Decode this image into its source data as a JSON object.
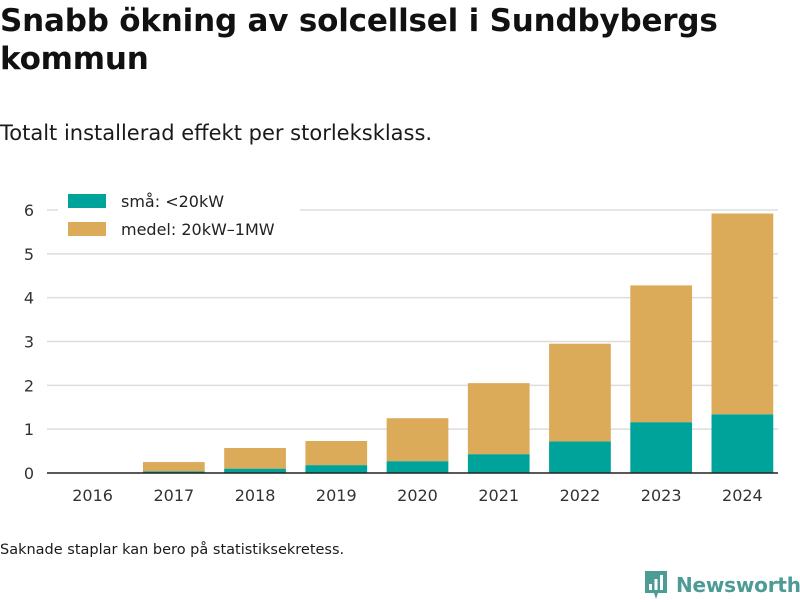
{
  "title": "Snabb ökning av solcellsel i Sundbybergs kommun",
  "subtitle": "Totalt installerad effekt per storleksklass.",
  "footnote": "Saknade staplar kan bero på statistiksekretess.",
  "brand": {
    "name": "Newsworthy",
    "icon": "newsworthy-logo-icon",
    "color": "#4d9b95"
  },
  "chart_data": {
    "type": "bar",
    "stacked": true,
    "categories": [
      "2016",
      "2017",
      "2018",
      "2019",
      "2020",
      "2021",
      "2022",
      "2023",
      "2024"
    ],
    "series": [
      {
        "name": "små: <20kW",
        "color": "#00a39a",
        "values": [
          0,
          0.04,
          0.1,
          0.18,
          0.27,
          0.43,
          0.72,
          1.16,
          1.34
        ]
      },
      {
        "name": "medel: 20kW–1MW",
        "color": "#dbab5a",
        "values": [
          0,
          0.21,
          0.47,
          0.55,
          0.98,
          1.62,
          2.23,
          3.12,
          4.58
        ]
      }
    ],
    "ylim": [
      0,
      6
    ],
    "yticks": [
      "0",
      "1",
      "2",
      "3",
      "4",
      "5",
      "6"
    ],
    "xlabel": "",
    "ylabel": "",
    "grid": true,
    "legend_position": "top-left"
  }
}
